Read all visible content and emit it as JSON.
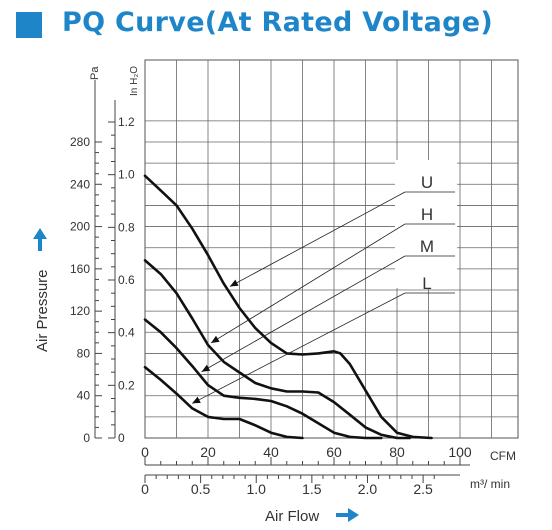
{
  "header": {
    "title": "PQ Curve(At Rated Voltage)",
    "accent_color": "#1e86c8"
  },
  "chart_data": {
    "type": "line",
    "title": "PQ Curve(At Rated Voltage)",
    "xlabel": "Air Flow",
    "ylabel": "Air Pressure",
    "x_unit": "CFM",
    "x2_unit": "m³/ min",
    "y_unit": "Pa",
    "y2_unit": "In H₂O",
    "xlim": [
      0,
      110
    ],
    "ylim": [
      0,
      300
    ],
    "x_ticks": [
      "0",
      "20",
      "40",
      "60",
      "80",
      "100"
    ],
    "x2_ticks": [
      "0",
      "0.5",
      "1.0",
      "1.5",
      "2.0",
      "2.5"
    ],
    "y_ticks": [
      "0",
      "40",
      "80",
      "120",
      "160",
      "200",
      "240",
      "280"
    ],
    "y2_ticks": [
      "0",
      "0.2",
      "0.4",
      "0.6",
      "0.8",
      "1.0",
      "1.2"
    ],
    "grid": true,
    "series": [
      {
        "name": "U",
        "x": [
          0,
          5,
          10,
          15,
          20,
          25,
          30,
          35,
          40,
          45,
          50,
          55,
          60,
          62,
          65,
          70,
          75,
          80,
          85,
          91
        ],
        "y": [
          248,
          234,
          220,
          198,
          173,
          146,
          123,
          104,
          90,
          80,
          79,
          80,
          82,
          80,
          70,
          45,
          20,
          5,
          1,
          0
        ]
      },
      {
        "name": "H",
        "x": [
          0,
          5,
          10,
          15,
          20,
          25,
          30,
          35,
          40,
          45,
          50,
          55,
          60,
          65,
          70,
          75,
          80,
          84
        ],
        "y": [
          168,
          155,
          137,
          113,
          88,
          72,
          62,
          52,
          47,
          44,
          44,
          43,
          34,
          22,
          10,
          3,
          0,
          0
        ]
      },
      {
        "name": "M",
        "x": [
          0,
          5,
          10,
          15,
          20,
          25,
          30,
          35,
          40,
          45,
          50,
          55,
          60,
          65,
          70,
          75
        ],
        "y": [
          112,
          100,
          85,
          68,
          50,
          40,
          38,
          37,
          35,
          30,
          23,
          14,
          5,
          1,
          0,
          0
        ]
      },
      {
        "name": "L",
        "x": [
          0,
          5,
          10,
          15,
          20,
          25,
          30,
          35,
          40,
          45,
          50
        ],
        "y": [
          67,
          55,
          42,
          28,
          20,
          18,
          18,
          12,
          5,
          1,
          0
        ]
      }
    ],
    "legend_position": "right"
  }
}
